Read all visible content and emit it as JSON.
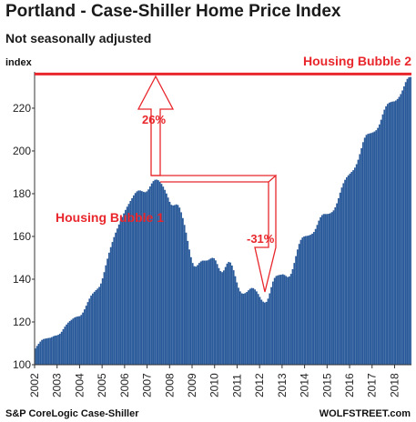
{
  "header": {
    "title": "Portland - Case-Shiller Home Price Index",
    "subtitle": "Not seasonally adjusted"
  },
  "footer": {
    "source": "S&P CoreLogic Case-Shiller",
    "brand": "WOLFSTREET.com"
  },
  "colors": {
    "bar": "#2a5a9a",
    "accent": "#e8262b",
    "text": "#1a1a1a"
  },
  "chart_data": {
    "type": "bar",
    "title": "Portland - Case-Shiller Home Price Index",
    "subtitle": "Not seasonally adjusted",
    "ylabel": "index",
    "xlabel": "",
    "ylim": [
      100,
      237
    ],
    "yticks": [
      100,
      120,
      140,
      160,
      180,
      200,
      220
    ],
    "x_start": 2002.0,
    "x_end": 2018.75,
    "xticks": [
      "2002",
      "2003",
      "2004",
      "2005",
      "2006",
      "2007",
      "2008",
      "2009",
      "2010",
      "2011",
      "2012",
      "2013",
      "2014",
      "2015",
      "2016",
      "2017",
      "2018"
    ],
    "grid": false,
    "annotations": {
      "bubble1_label": "Housing Bubble 1",
      "bubble2_label": "Housing Bubble 2",
      "rise_pct": "26%",
      "drop_pct": "-31%",
      "bubble2_level": 236
    },
    "values": [
      107.6,
      108.8,
      109.8,
      110.8,
      111.6,
      112.0,
      112.2,
      112.3,
      112.5,
      112.6,
      112.9,
      113.3,
      113.6,
      113.7,
      114.0,
      114.5,
      115.4,
      116.6,
      117.8,
      118.8,
      119.7,
      120.4,
      121.0,
      121.6,
      122.1,
      122.4,
      122.6,
      122.7,
      123.3,
      124.4,
      125.9,
      127.6,
      129.3,
      130.9,
      132.3,
      133.3,
      134.1,
      134.9,
      135.6,
      136.4,
      138.0,
      140.4,
      143.3,
      146.5,
      149.6,
      152.4,
      155.0,
      157.4,
      159.7,
      161.8,
      163.7,
      165.6,
      167.4,
      169.1,
      170.8,
      172.4,
      173.9,
      175.2,
      176.6,
      177.9,
      179.2,
      180.3,
      181.1,
      181.5,
      181.5,
      181.2,
      180.9,
      180.7,
      181.1,
      182.0,
      183.4,
      184.8,
      185.9,
      186.5,
      186.6,
      186.3,
      185.6,
      184.6,
      183.3,
      181.8,
      180.1,
      178.2,
      176.2,
      174.8,
      174.5,
      174.7,
      175.0,
      174.7,
      173.5,
      171.3,
      168.6,
      165.4,
      161.8,
      157.9,
      153.9,
      150.3,
      147.6,
      146.1,
      145.9,
      146.6,
      147.6,
      148.3,
      148.7,
      148.7,
      148.7,
      148.8,
      149.2,
      149.7,
      150.0,
      149.8,
      148.8,
      147.1,
      145.2,
      143.8,
      143.3,
      144.1,
      145.7,
      147.3,
      148.1,
      147.8,
      146.4,
      144.2,
      141.4,
      138.5,
      136.0,
      134.3,
      133.4,
      133.2,
      133.5,
      134.0,
      134.8,
      135.5,
      135.9,
      135.8,
      135.2,
      134.3,
      133.1,
      131.7,
      130.4,
      129.5,
      129.1,
      129.4,
      130.9,
      133.4,
      136.3,
      138.9,
      140.6,
      141.5,
      141.8,
      142.0,
      142.1,
      142.3,
      142.0,
      141.5,
      141.0,
      141.3,
      142.5,
      144.7,
      147.6,
      150.8,
      153.9,
      156.5,
      158.4,
      159.5,
      160.0,
      160.2,
      160.3,
      160.5,
      160.8,
      161.3,
      162.1,
      163.5,
      165.4,
      167.4,
      169.0,
      170.0,
      170.5,
      170.5,
      170.5,
      170.6,
      170.9,
      171.4,
      172.2,
      173.6,
      175.5,
      177.9,
      180.5,
      182.9,
      184.9,
      186.5,
      187.7,
      188.6,
      189.4,
      190.2,
      191.0,
      192.2,
      193.8,
      195.9,
      198.5,
      201.3,
      204.1,
      206.2,
      207.5,
      208.0,
      208.2,
      208.4,
      208.7,
      209.1,
      209.7,
      210.8,
      212.4,
      214.6,
      217.1,
      219.3,
      220.9,
      222.0,
      222.6,
      222.9,
      223.1,
      223.2,
      223.6,
      224.3,
      225.3,
      226.6,
      228.3,
      230.2,
      232.2,
      233.7,
      234.5,
      234.6
    ]
  }
}
